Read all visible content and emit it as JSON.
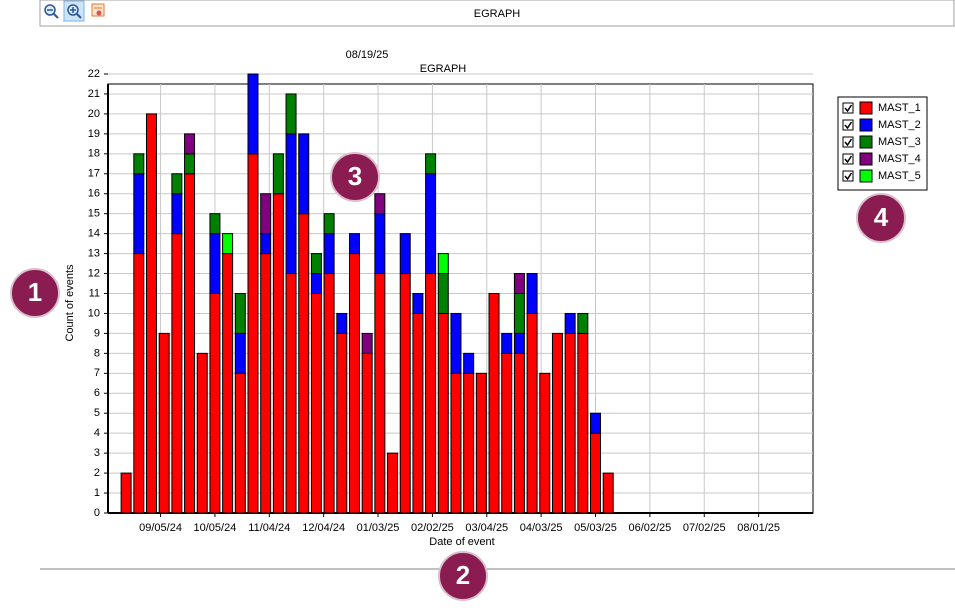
{
  "toolbar": {
    "title": "EGRAPH"
  },
  "callouts": [
    "1",
    "2",
    "3",
    "4"
  ],
  "chart_data": {
    "type": "bar",
    "stacked": true,
    "subtitle": "08/19/25",
    "title": "EGRAPH",
    "x_label": "Date of event",
    "y_label": "Count of events",
    "x": [
      "2024-08-17",
      "2024-08-24",
      "2024-08-31",
      "2024-09-07",
      "2024-09-14",
      "2024-09-21",
      "2024-09-28",
      "2024-10-05",
      "2024-10-12",
      "2024-10-19",
      "2024-10-26",
      "2024-11-02",
      "2024-11-09",
      "2024-11-16",
      "2024-11-23",
      "2024-11-30",
      "2024-12-07",
      "2024-12-14",
      "2024-12-21",
      "2024-12-28",
      "2025-01-04",
      "2025-01-11",
      "2025-01-18",
      "2025-01-25",
      "2025-02-01",
      "2025-02-08",
      "2025-02-15",
      "2025-02-22",
      "2025-03-01",
      "2025-03-08",
      "2025-03-15",
      "2025-03-22",
      "2025-03-29",
      "2025-04-05",
      "2025-04-12",
      "2025-04-19",
      "2025-04-26",
      "2025-05-03",
      "2025-05-10"
    ],
    "series": [
      {
        "name": "MAST_1",
        "color": "#ff0000",
        "values": [
          2,
          13,
          20,
          9,
          14,
          17,
          8,
          11,
          13,
          7,
          18,
          13,
          16,
          12,
          15,
          11,
          12,
          9,
          13,
          8,
          12,
          3,
          12,
          10,
          12,
          10,
          7,
          7,
          7,
          11,
          8,
          8,
          10,
          7,
          9,
          9,
          9,
          4,
          2
        ]
      },
      {
        "name": "MAST_2",
        "color": "#0000ff",
        "values": [
          null,
          4,
          null,
          null,
          2,
          null,
          null,
          3,
          null,
          2,
          4,
          1,
          null,
          7,
          4,
          1,
          2,
          1,
          1,
          null,
          3,
          null,
          2,
          1,
          5,
          null,
          3,
          1,
          null,
          null,
          1,
          1,
          2,
          null,
          null,
          1,
          null,
          1,
          null
        ]
      },
      {
        "name": "MAST_3",
        "color": "#008000",
        "values": [
          null,
          1,
          null,
          null,
          1,
          1,
          null,
          1,
          null,
          2,
          null,
          null,
          2,
          2,
          null,
          1,
          1,
          null,
          null,
          null,
          null,
          null,
          null,
          null,
          1,
          2,
          null,
          null,
          null,
          null,
          null,
          2,
          null,
          null,
          null,
          null,
          1,
          null,
          null
        ]
      },
      {
        "name": "MAST_4",
        "color": "#800080",
        "values": [
          null,
          null,
          null,
          null,
          null,
          1,
          null,
          null,
          null,
          null,
          null,
          2,
          null,
          null,
          null,
          null,
          null,
          null,
          null,
          1,
          1,
          null,
          null,
          null,
          null,
          null,
          null,
          null,
          null,
          null,
          null,
          1,
          null,
          null,
          null,
          null,
          null,
          null,
          null
        ]
      },
      {
        "name": "MAST_5",
        "color": "#00ff00",
        "values": [
          null,
          null,
          null,
          null,
          null,
          null,
          null,
          null,
          1,
          null,
          null,
          null,
          null,
          null,
          null,
          null,
          null,
          null,
          null,
          null,
          null,
          null,
          null,
          null,
          null,
          1,
          null,
          null,
          null,
          null,
          null,
          null,
          null,
          null,
          null,
          null,
          null,
          null,
          null
        ]
      }
    ],
    "xlim": [
      "2024-08-07",
      "2025-08-31"
    ],
    "xticks": [
      {
        "value": "2024-09-05",
        "label": "09/05/24"
      },
      {
        "value": "2024-10-05",
        "label": "10/05/24"
      },
      {
        "value": "2024-11-04",
        "label": "11/04/24"
      },
      {
        "value": "2024-12-04",
        "label": "12/04/24"
      },
      {
        "value": "2025-01-03",
        "label": "01/03/25"
      },
      {
        "value": "2025-02-02",
        "label": "02/02/25"
      },
      {
        "value": "2025-03-04",
        "label": "03/04/25"
      },
      {
        "value": "2025-04-03",
        "label": "04/03/25"
      },
      {
        "value": "2025-05-03",
        "label": "05/03/25"
      },
      {
        "value": "2025-06-02",
        "label": "06/02/25"
      },
      {
        "value": "2025-07-02",
        "label": "07/02/25"
      },
      {
        "value": "2025-08-01",
        "label": "08/01/25"
      }
    ],
    "ylim": [
      0,
      22
    ],
    "yticks": [
      0,
      1,
      2,
      3,
      4,
      5,
      6,
      7,
      8,
      9,
      10,
      11,
      12,
      13,
      14,
      15,
      16,
      17,
      18,
      19,
      20,
      21,
      22
    ],
    "grid": true,
    "legend": "right"
  }
}
